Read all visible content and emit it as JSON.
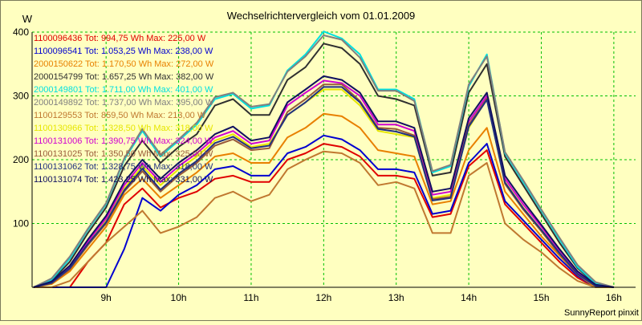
{
  "chart_data": {
    "type": "line",
    "title": "Wechselrichtervergleich vom 01.01.2009",
    "ylabel": "W",
    "xlabel": "",
    "footer": "SunnyReport pinxit",
    "ylim": [
      0,
      400
    ],
    "xlim": [
      7.98,
      16.3
    ],
    "y_ticks": [
      100,
      200,
      300,
      400
    ],
    "x_ticks": [
      {
        "label": "9h",
        "value": 9
      },
      {
        "label": "10h",
        "value": 10
      },
      {
        "label": "11h",
        "value": 11
      },
      {
        "label": "12h",
        "value": 12
      },
      {
        "label": "13h",
        "value": 13
      },
      {
        "label": "14h",
        "value": 14
      },
      {
        "label": "15h",
        "value": 15
      },
      {
        "label": "16h",
        "value": 16
      }
    ],
    "grid": true,
    "legend_position": "top-left",
    "x": [
      8.0,
      8.25,
      8.5,
      8.75,
      9.0,
      9.25,
      9.5,
      9.75,
      10.0,
      10.25,
      10.5,
      10.75,
      11.0,
      11.25,
      11.5,
      11.75,
      12.0,
      12.25,
      12.5,
      12.75,
      13.0,
      13.25,
      13.5,
      13.75,
      14.0,
      14.25,
      14.5,
      14.75,
      15.0,
      15.25,
      15.5,
      15.75,
      16.0
    ],
    "series": [
      {
        "name": "1100096436",
        "legend": "1100096436 Tot: 994,75 Wh Max: 225,00 W",
        "color": "#e00000",
        "values": [
          0,
          0,
          0,
          40,
          70,
          130,
          155,
          125,
          140,
          150,
          170,
          175,
          165,
          165,
          200,
          210,
          225,
          220,
          205,
          175,
          175,
          170,
          110,
          115,
          190,
          215,
          130,
          100,
          70,
          40,
          15,
          0,
          0
        ]
      },
      {
        "name": "1100096541",
        "legend": "1100096541 Tot: 1.053,25 Wh Max: 238,00 W",
        "color": "#0000d0",
        "values": [
          0,
          0,
          0,
          0,
          0,
          60,
          140,
          120,
          145,
          160,
          185,
          190,
          175,
          175,
          210,
          220,
          238,
          232,
          215,
          185,
          185,
          180,
          115,
          120,
          195,
          225,
          135,
          105,
          75,
          45,
          18,
          0,
          0
        ]
      },
      {
        "name": "2000150622",
        "legend": "2000150622 Tot: 1.170,50 Wh Max: 272,00 W",
        "color": "#e88000",
        "values": [
          0,
          5,
          25,
          60,
          95,
          145,
          170,
          140,
          160,
          180,
          205,
          210,
          195,
          195,
          235,
          250,
          272,
          268,
          250,
          215,
          210,
          205,
          130,
          135,
          215,
          250,
          150,
          115,
          80,
          50,
          20,
          0,
          0
        ]
      },
      {
        "name": "2000154799",
        "legend": "2000154799 Tot: 1.657,25 Wh Max: 382,00 W",
        "color": "#303030",
        "values": [
          0,
          10,
          40,
          85,
          125,
          190,
          230,
          195,
          220,
          240,
          285,
          295,
          270,
          270,
          325,
          345,
          382,
          375,
          350,
          300,
          295,
          285,
          175,
          180,
          305,
          350,
          205,
          160,
          115,
          70,
          30,
          5,
          0
        ]
      },
      {
        "name": "2000149801",
        "legend": "2000149801 Tot: 1.711,00 Wh Max: 401,00 W",
        "color": "#00e0e0",
        "values": [
          0,
          12,
          45,
          90,
          130,
          200,
          245,
          205,
          230,
          255,
          295,
          303,
          280,
          285,
          340,
          365,
          401,
          390,
          365,
          310,
          310,
          295,
          180,
          190,
          315,
          365,
          210,
          165,
          120,
          75,
          32,
          6,
          0
        ]
      },
      {
        "name": "2000149892",
        "legend": "2000149892 Tot: 1.737,00 Wh Max: 395,00 W",
        "color": "#808080",
        "values": [
          0,
          14,
          48,
          92,
          132,
          202,
          248,
          208,
          232,
          258,
          298,
          305,
          283,
          287,
          338,
          362,
          395,
          388,
          360,
          308,
          308,
          292,
          182,
          192,
          318,
          362,
          212,
          168,
          122,
          78,
          35,
          8,
          0
        ]
      },
      {
        "name": "1100129553",
        "legend": "1100129553 Tot: 859,50 Wh Max: 213,00 W",
        "color": "#c07830",
        "values": [
          0,
          0,
          10,
          40,
          70,
          95,
          120,
          85,
          95,
          110,
          140,
          150,
          135,
          145,
          185,
          200,
          213,
          210,
          195,
          160,
          165,
          155,
          85,
          85,
          175,
          195,
          100,
          75,
          55,
          30,
          10,
          0,
          0
        ]
      },
      {
        "name": "1100130966",
        "legend": "1100130966 Tot: 1.328,50 Wh Max: 318,00 W",
        "color": "#e6e600",
        "values": [
          0,
          8,
          30,
          70,
          105,
          155,
          190,
          160,
          185,
          205,
          230,
          240,
          220,
          225,
          270,
          290,
          310,
          310,
          285,
          245,
          240,
          235,
          140,
          145,
          250,
          295,
          165,
          125,
          90,
          55,
          22,
          2,
          0
        ]
      },
      {
        "name": "1100131006",
        "legend": "1100131006 Tot: 1.390,75 Wh Max: 324,00 W",
        "color": "#d000d0",
        "values": [
          0,
          8,
          32,
          72,
          108,
          160,
          195,
          165,
          190,
          210,
          235,
          245,
          225,
          230,
          285,
          305,
          324,
          320,
          300,
          255,
          255,
          245,
          145,
          150,
          260,
          300,
          170,
          130,
          95,
          58,
          24,
          3,
          0
        ]
      },
      {
        "name": "1100131025",
        "legend": "1100131025 Tot: 1.350,50 Wh Max: 325,00 W",
        "color": "#9a5a3a",
        "values": [
          0,
          6,
          28,
          66,
          100,
          150,
          182,
          150,
          175,
          195,
          222,
          232,
          215,
          218,
          275,
          295,
          318,
          318,
          292,
          250,
          248,
          238,
          138,
          142,
          255,
          296,
          162,
          122,
          88,
          52,
          20,
          2,
          0
        ]
      },
      {
        "name": "1100131062",
        "legend": "1100131062 Tot: 1.328,75 Wh Max: 318,00 W",
        "color": "#203080",
        "values": [
          0,
          7,
          30,
          68,
          102,
          152,
          186,
          153,
          178,
          198,
          226,
          236,
          218,
          222,
          270,
          290,
          314,
          314,
          290,
          248,
          244,
          236,
          136,
          140,
          252,
          294,
          164,
          124,
          90,
          54,
          21,
          2,
          0
        ]
      },
      {
        "name": "1100131074",
        "legend": "1100131074 Tot: 1.423,25 Wh Max: 331,00 W",
        "color": "#101060",
        "values": [
          0,
          9,
          34,
          75,
          112,
          165,
          200,
          170,
          195,
          215,
          240,
          252,
          230,
          235,
          290,
          310,
          331,
          325,
          305,
          260,
          260,
          250,
          150,
          155,
          265,
          305,
          175,
          135,
          98,
          60,
          25,
          4,
          0
        ]
      }
    ]
  }
}
